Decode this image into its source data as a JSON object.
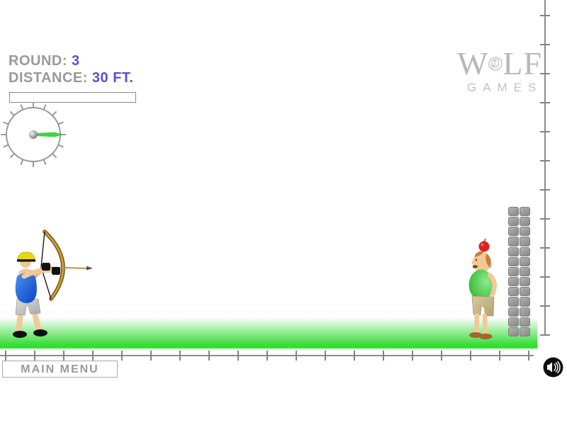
{
  "hud": {
    "round_label": "ROUND:",
    "round_value": "3",
    "distance_label": "DISTANCE:",
    "distance_value": "30 FT.",
    "power_percent": 0
  },
  "gauge": {
    "tick_count": 16,
    "needle_angle_deg": 0
  },
  "logo": {
    "prefix": "W",
    "suffix": "LF",
    "subtitle": "GAMES",
    "emblem": "wolf-head-icon"
  },
  "scene": {
    "archer": "archer-with-bow-and-arrow",
    "target": "man-with-apple-on-head",
    "tower": {
      "rows": 13,
      "cols": 2
    }
  },
  "rulers": {
    "bottom_tick_count": 19,
    "right_tick_count": 12
  },
  "footer": {
    "main_menu_label": "MAIN MENU"
  },
  "audio": {
    "icon": "speaker-icon"
  },
  "colors": {
    "hud_label": "#999999",
    "hud_value": "#5450D8",
    "needle_green": "#33DD33",
    "ground_green": "#36DC36",
    "ground_edge": "#2AE52A",
    "logo_gray": "#B8B8B8",
    "apple_red": "#DD2222"
  }
}
